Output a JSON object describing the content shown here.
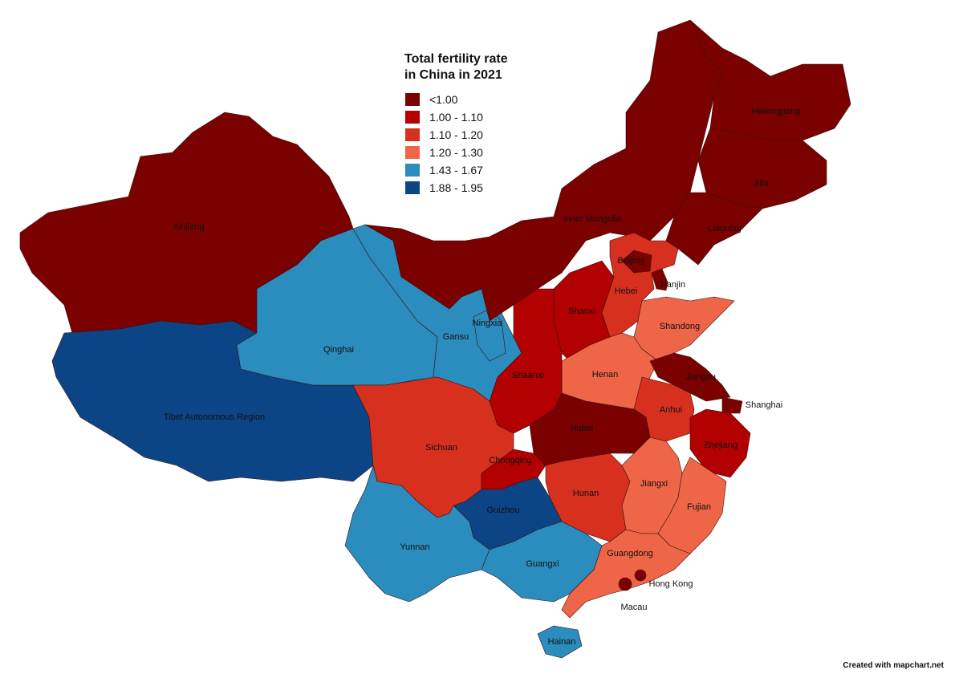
{
  "title": "Total fertility rate in China in 2021",
  "legend": [
    {
      "label": "<1.00",
      "color": "#7b0000"
    },
    {
      "label": "1.00 - 1.10",
      "color": "#b30000"
    },
    {
      "label": "1.10 - 1.20",
      "color": "#d7301f"
    },
    {
      "label": "1.20 - 1.30",
      "color": "#ef6548"
    },
    {
      "label": "1.43 - 1.67",
      "color": "#2b8cbe"
    },
    {
      "label": "1.88 - 1.95",
      "color": "#0b4586"
    }
  ],
  "regions": [
    {
      "label": "Xinjiang",
      "color": "#7b0000"
    },
    {
      "label": "Tibet Autonomous Region",
      "color": "#0b4586"
    },
    {
      "label": "Qinghai",
      "color": "#2b8cbe"
    },
    {
      "label": "Gansu",
      "color": "#2b8cbe"
    },
    {
      "label": "Ningxia",
      "color": "#2b8cbe"
    },
    {
      "label": "Inner Mongolia",
      "color": "#7b0000"
    },
    {
      "label": "Heilongjiang",
      "color": "#7b0000"
    },
    {
      "label": "Jilin",
      "color": "#7b0000"
    },
    {
      "label": "Liaoning",
      "color": "#7b0000"
    },
    {
      "label": "Hebei",
      "color": "#d7301f"
    },
    {
      "label": "Beijing",
      "color": "#7b0000"
    },
    {
      "label": "Tianjin",
      "color": "#7b0000"
    },
    {
      "label": "Shanxi",
      "color": "#b30000"
    },
    {
      "label": "Shandong",
      "color": "#ef6548"
    },
    {
      "label": "Henan",
      "color": "#ef6548"
    },
    {
      "label": "Shaanxi",
      "color": "#b30000"
    },
    {
      "label": "Jiangsu",
      "color": "#7b0000"
    },
    {
      "label": "Shanghai",
      "color": "#7b0000"
    },
    {
      "label": "Anhui",
      "color": "#d7301f"
    },
    {
      "label": "Hubei",
      "color": "#7b0000"
    },
    {
      "label": "Zhejiang",
      "color": "#b30000"
    },
    {
      "label": "Sichuan",
      "color": "#d7301f"
    },
    {
      "label": "Chongqing",
      "color": "#b30000"
    },
    {
      "label": "Hunan",
      "color": "#d7301f"
    },
    {
      "label": "Jiangxi",
      "color": "#ef6548"
    },
    {
      "label": "Fujian",
      "color": "#ef6548"
    },
    {
      "label": "Guizhou",
      "color": "#0b4586"
    },
    {
      "label": "Yunnan",
      "color": "#2b8cbe"
    },
    {
      "label": "Guangxi",
      "color": "#2b8cbe"
    },
    {
      "label": "Guangdong",
      "color": "#ef6548"
    },
    {
      "label": "Hong Kong",
      "color": "#7b0000"
    },
    {
      "label": "Macau",
      "color": "#7b0000"
    },
    {
      "label": "Hainan",
      "color": "#2b8cbe"
    }
  ],
  "credit": "Created with mapchart.net"
}
